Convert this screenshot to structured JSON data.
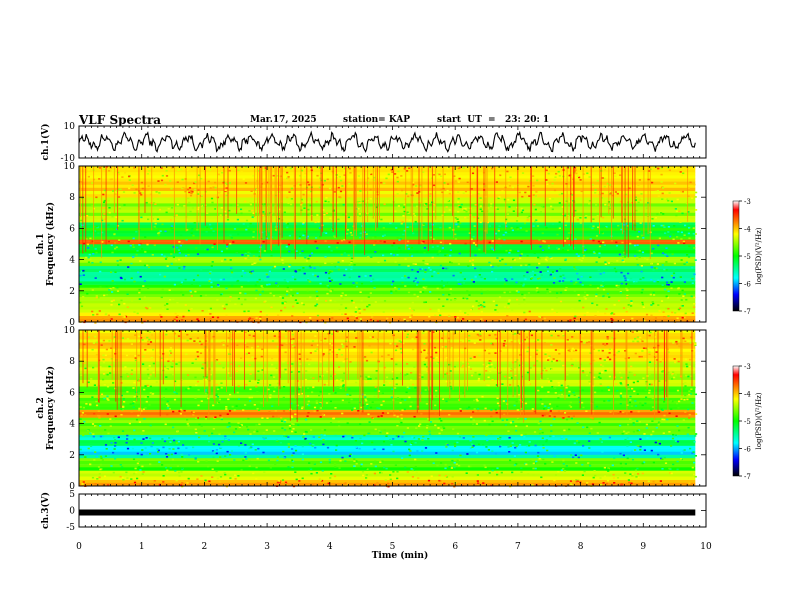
{
  "header": {
    "title": "VLF Spectra",
    "date": "Mar.17, 2025",
    "station": "station= KAP",
    "start": "start  UT  =   23: 20: 1"
  },
  "chart_data": [
    {
      "type": "line",
      "id": "ch1-waveform",
      "ylabel": "ch.1(V)",
      "ylim": [
        -10,
        10
      ],
      "y_ticks": [
        "10",
        "-10"
      ],
      "xlim": [
        0,
        9.83
      ],
      "amplitude_range_v": [
        -6,
        6
      ]
    },
    {
      "type": "heatmap",
      "id": "ch1-spectrogram",
      "ylabel": "ch.1\nFrequency  (kHz)",
      "ylim": [
        0,
        10
      ],
      "y_ticks": [
        "0",
        "2",
        "4",
        "6",
        "8",
        "10"
      ],
      "xlim": [
        0,
        9.83
      ],
      "colorbar": {
        "label": "log(PSD)(V²/Hz)",
        "range": [
          -7,
          -3
        ],
        "ticks": [
          "-3",
          "-4",
          "-5",
          "-6",
          "-7"
        ]
      },
      "bands_khz": [
        {
          "from": 0.0,
          "to": 0.4,
          "level": -3.5
        },
        {
          "from": 0.4,
          "to": 1.0,
          "level": -4.3
        },
        {
          "from": 1.0,
          "to": 1.8,
          "level": -4.6
        },
        {
          "from": 1.8,
          "to": 2.4,
          "level": -5.0
        },
        {
          "from": 2.4,
          "to": 3.6,
          "level": -5.6
        },
        {
          "from": 3.6,
          "to": 4.2,
          "level": -4.8
        },
        {
          "from": 4.2,
          "to": 5.0,
          "level": -5.4
        },
        {
          "from": 5.0,
          "to": 5.3,
          "level": -3.4
        },
        {
          "from": 5.3,
          "to": 6.4,
          "level": -5.2
        },
        {
          "from": 6.4,
          "to": 8.0,
          "level": -4.6
        },
        {
          "from": 8.0,
          "to": 10.0,
          "level": -4.0
        }
      ]
    },
    {
      "type": "heatmap",
      "id": "ch2-spectrogram",
      "ylabel": "ch.2\nFrequency  (kHz)",
      "ylim": [
        0,
        10
      ],
      "y_ticks": [
        "0",
        "2",
        "4",
        "6",
        "8",
        "10"
      ],
      "xlim": [
        0,
        9.83
      ],
      "colorbar": {
        "label": "log(PSD)(V²/Hz)",
        "range": [
          -7,
          -3
        ],
        "ticks": [
          "-3",
          "-4",
          "-5",
          "-6",
          "-7"
        ]
      },
      "bands_khz": [
        {
          "from": 0.0,
          "to": 0.4,
          "level": -3.6
        },
        {
          "from": 0.4,
          "to": 1.0,
          "level": -4.5
        },
        {
          "from": 1.0,
          "to": 1.8,
          "level": -5.0
        },
        {
          "from": 1.8,
          "to": 2.4,
          "level": -5.7
        },
        {
          "from": 2.4,
          "to": 3.3,
          "level": -5.6
        },
        {
          "from": 3.3,
          "to": 4.4,
          "level": -4.9
        },
        {
          "from": 4.4,
          "to": 4.9,
          "level": -3.5
        },
        {
          "from": 4.9,
          "to": 6.4,
          "level": -4.8
        },
        {
          "from": 6.4,
          "to": 8.0,
          "level": -4.5
        },
        {
          "from": 8.0,
          "to": 10.0,
          "level": -4.0
        }
      ]
    },
    {
      "type": "line",
      "id": "ch3-waveform",
      "ylabel": "ch.3(V)",
      "ylim": [
        -5,
        5
      ],
      "y_ticks": [
        "5",
        "0",
        "-5"
      ],
      "xlim": [
        0,
        9.83
      ],
      "level_v": -0.6,
      "xlabel": "Time  (min)",
      "x_ticks": [
        "0",
        "1",
        "2",
        "3",
        "4",
        "5",
        "6",
        "7",
        "8",
        "9",
        "10"
      ],
      "x_axis_range": [
        0,
        10
      ]
    }
  ]
}
